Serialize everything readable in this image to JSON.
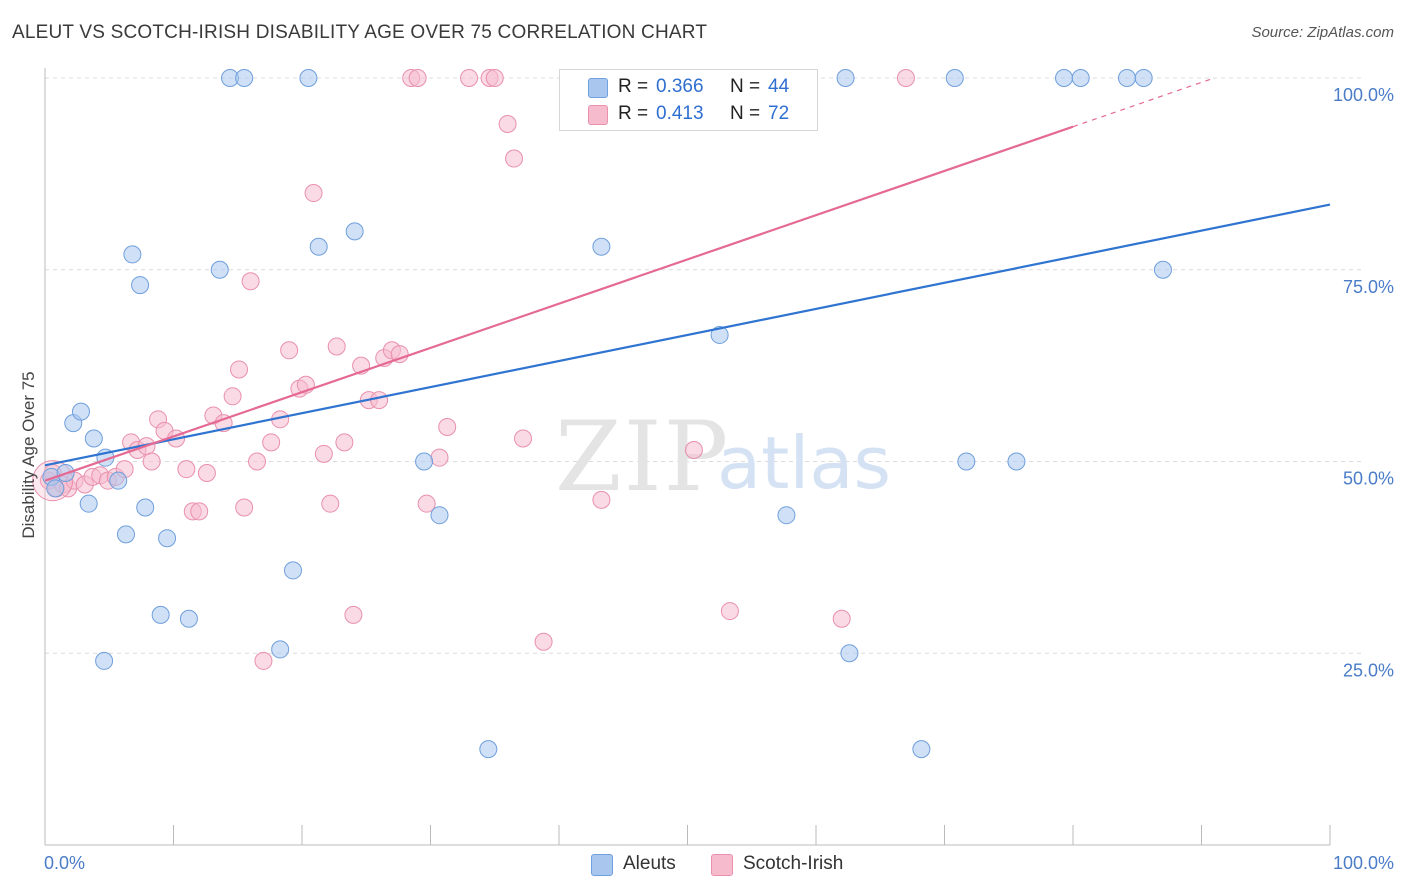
{
  "header": {
    "title": "ALEUT VS SCOTCH-IRISH DISABILITY AGE OVER 75 CORRELATION CHART",
    "source": "Source: ZipAtlas.com"
  },
  "watermark": {
    "zip": "ZIP",
    "atlas": "atlas"
  },
  "legend": {
    "rows": [
      {
        "r_label": "R =",
        "r_value": "0.366",
        "n_label": "N =",
        "n_value": "44"
      },
      {
        "r_label": "R =",
        "r_value": "0.413",
        "n_label": "N =",
        "n_value": "72"
      }
    ]
  },
  "bottom_legend": {
    "aleuts": "Aleuts",
    "scotch_irish": "Scotch-Irish"
  },
  "colors": {
    "aleuts_fill": "#a9c6ef",
    "aleuts_stroke": "#6f9fdc",
    "aleuts_line": "#2f74d0",
    "scotch_fill": "#f6bccd",
    "scotch_stroke": "#e990ad",
    "scotch_line": "#e56a93",
    "grid": "#dcdcdc",
    "tick_label": "#4a7cc7"
  },
  "chart_data": {
    "type": "scatter",
    "title": "ALEUT VS SCOTCH-IRISH DISABILITY AGE OVER 75 CORRELATION CHART",
    "xlabel": "",
    "ylabel": "Disability Age Over 75",
    "xlim": [
      0,
      100
    ],
    "ylim": [
      0,
      100
    ],
    "x_tick_labels": [
      "0.0%",
      "100.0%"
    ],
    "y_tick_labels": [
      "100.0%",
      "75.0%",
      "50.0%",
      "25.0%"
    ],
    "y_ticks": [
      100,
      75,
      50,
      25
    ],
    "grid": true,
    "legend_position": "top-center",
    "series": [
      {
        "name": "Aleuts",
        "r": 0.366,
        "n": 44,
        "trend": {
          "x": [
            0,
            100
          ],
          "y": [
            49.5,
            83.5
          ],
          "dashed_from": null
        },
        "points": [
          [
            0.5,
            48
          ],
          [
            0.8,
            46.5
          ],
          [
            1.6,
            48.5
          ],
          [
            2.2,
            55
          ],
          [
            2.8,
            56.5
          ],
          [
            3.4,
            44.5
          ],
          [
            3.8,
            53
          ],
          [
            4.6,
            24
          ],
          [
            4.7,
            50.5
          ],
          [
            5.7,
            47.5
          ],
          [
            6.3,
            40.5
          ],
          [
            6.8,
            77
          ],
          [
            7.4,
            73
          ],
          [
            7.8,
            44
          ],
          [
            9.0,
            30
          ],
          [
            9.5,
            40
          ],
          [
            11.2,
            29.5
          ],
          [
            13.6,
            75
          ],
          [
            14.4,
            100
          ],
          [
            15.5,
            100
          ],
          [
            18.3,
            25.5
          ],
          [
            19.3,
            35.8
          ],
          [
            20.5,
            100
          ],
          [
            21.3,
            78
          ],
          [
            24.1,
            80
          ],
          [
            29.5,
            50
          ],
          [
            30.7,
            43
          ],
          [
            34.5,
            12.5
          ],
          [
            43.3,
            78
          ],
          [
            52.5,
            66.5
          ],
          [
            57.7,
            43
          ],
          [
            62.3,
            100
          ],
          [
            62.6,
            25
          ],
          [
            68.2,
            12.5
          ],
          [
            70.8,
            100
          ],
          [
            71.7,
            50
          ],
          [
            75.6,
            50
          ],
          [
            79.3,
            100
          ],
          [
            80.6,
            100
          ],
          [
            84.2,
            100
          ],
          [
            85.5,
            100
          ],
          [
            87.0,
            75
          ]
        ]
      },
      {
        "name": "Scotch-Irish",
        "r": 0.413,
        "n": 72,
        "trend": {
          "x": [
            0,
            91
          ],
          "y": [
            47.5,
            100
          ],
          "dashed_from": 80
        },
        "points": [
          [
            0.3,
            47.5
          ],
          [
            0.6,
            48.5
          ],
          [
            0.9,
            46.5
          ],
          [
            1.4,
            47
          ],
          [
            1.8,
            46.5
          ],
          [
            2.3,
            47.5
          ],
          [
            3.1,
            47
          ],
          [
            3.7,
            48
          ],
          [
            4.3,
            48.2
          ],
          [
            4.9,
            47.5
          ],
          [
            5.5,
            48
          ],
          [
            6.2,
            49
          ],
          [
            6.7,
            52.5
          ],
          [
            7.2,
            51.5
          ],
          [
            7.9,
            52
          ],
          [
            8.3,
            50
          ],
          [
            8.8,
            55.5
          ],
          [
            9.3,
            54
          ],
          [
            10.2,
            53
          ],
          [
            11.0,
            49
          ],
          [
            11.5,
            43.5
          ],
          [
            12.0,
            43.5
          ],
          [
            12.6,
            48.5
          ],
          [
            13.1,
            56
          ],
          [
            13.9,
            55
          ],
          [
            14.6,
            58.5
          ],
          [
            15.1,
            62
          ],
          [
            15.5,
            44
          ],
          [
            16.0,
            73.5
          ],
          [
            16.5,
            50
          ],
          [
            17.0,
            24
          ],
          [
            17.6,
            52.5
          ],
          [
            18.3,
            55.5
          ],
          [
            19.0,
            64.5
          ],
          [
            19.8,
            59.5
          ],
          [
            20.3,
            60
          ],
          [
            20.9,
            85
          ],
          [
            21.7,
            51
          ],
          [
            22.2,
            44.5
          ],
          [
            22.7,
            65
          ],
          [
            23.3,
            52.5
          ],
          [
            24.0,
            30
          ],
          [
            24.6,
            62.5
          ],
          [
            25.2,
            58
          ],
          [
            26.0,
            58
          ],
          [
            26.4,
            63.5
          ],
          [
            27.0,
            64.5
          ],
          [
            27.6,
            64
          ],
          [
            28.5,
            100
          ],
          [
            29.0,
            100
          ],
          [
            29.7,
            44.5
          ],
          [
            30.7,
            50.5
          ],
          [
            31.3,
            54.5
          ],
          [
            33.0,
            100
          ],
          [
            34.6,
            100
          ],
          [
            35.0,
            100
          ],
          [
            36.0,
            94
          ],
          [
            36.5,
            89.5
          ],
          [
            37.2,
            53
          ],
          [
            38.8,
            26.5
          ],
          [
            41.0,
            100
          ],
          [
            43.3,
            45
          ],
          [
            48.0,
            100
          ],
          [
            50.5,
            51.5
          ],
          [
            53.3,
            30.5
          ],
          [
            62.0,
            29.5
          ],
          [
            67.0,
            100
          ]
        ]
      }
    ]
  }
}
